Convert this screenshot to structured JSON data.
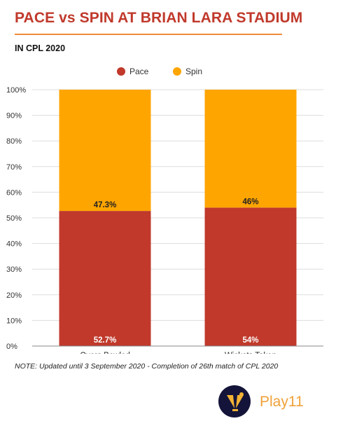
{
  "header": {
    "title": "PACE vs SPIN AT BRIAN LARA STADIUM",
    "subtitle": "IN CPL 2020"
  },
  "footer": {
    "note": "NOTE: Updated until 3 September 2020 - Completion of 26th match of CPL 2020",
    "brand": "Play11"
  },
  "colors": {
    "pace": "#c0392b",
    "spin": "#ffa500",
    "title": "#c0392b",
    "rule": "#f08c3a"
  },
  "chart_data": {
    "type": "bar",
    "stacked": true,
    "categories": [
      "Overs Bowled",
      "Wickets Taken"
    ],
    "series": [
      {
        "name": "Pace",
        "values": [
          52.7,
          54
        ],
        "labels": [
          "52.7%",
          "54%"
        ],
        "color": "#c0392b"
      },
      {
        "name": "Spin",
        "values": [
          47.3,
          46
        ],
        "labels": [
          "47.3%",
          "46%"
        ],
        "color": "#ffa500"
      }
    ],
    "yticks": [
      "0%",
      "10%",
      "20%",
      "30%",
      "40%",
      "50%",
      "60%",
      "70%",
      "80%",
      "90%",
      "100%"
    ],
    "ylim": [
      0,
      100
    ],
    "grid": true,
    "legend": "top-center"
  }
}
